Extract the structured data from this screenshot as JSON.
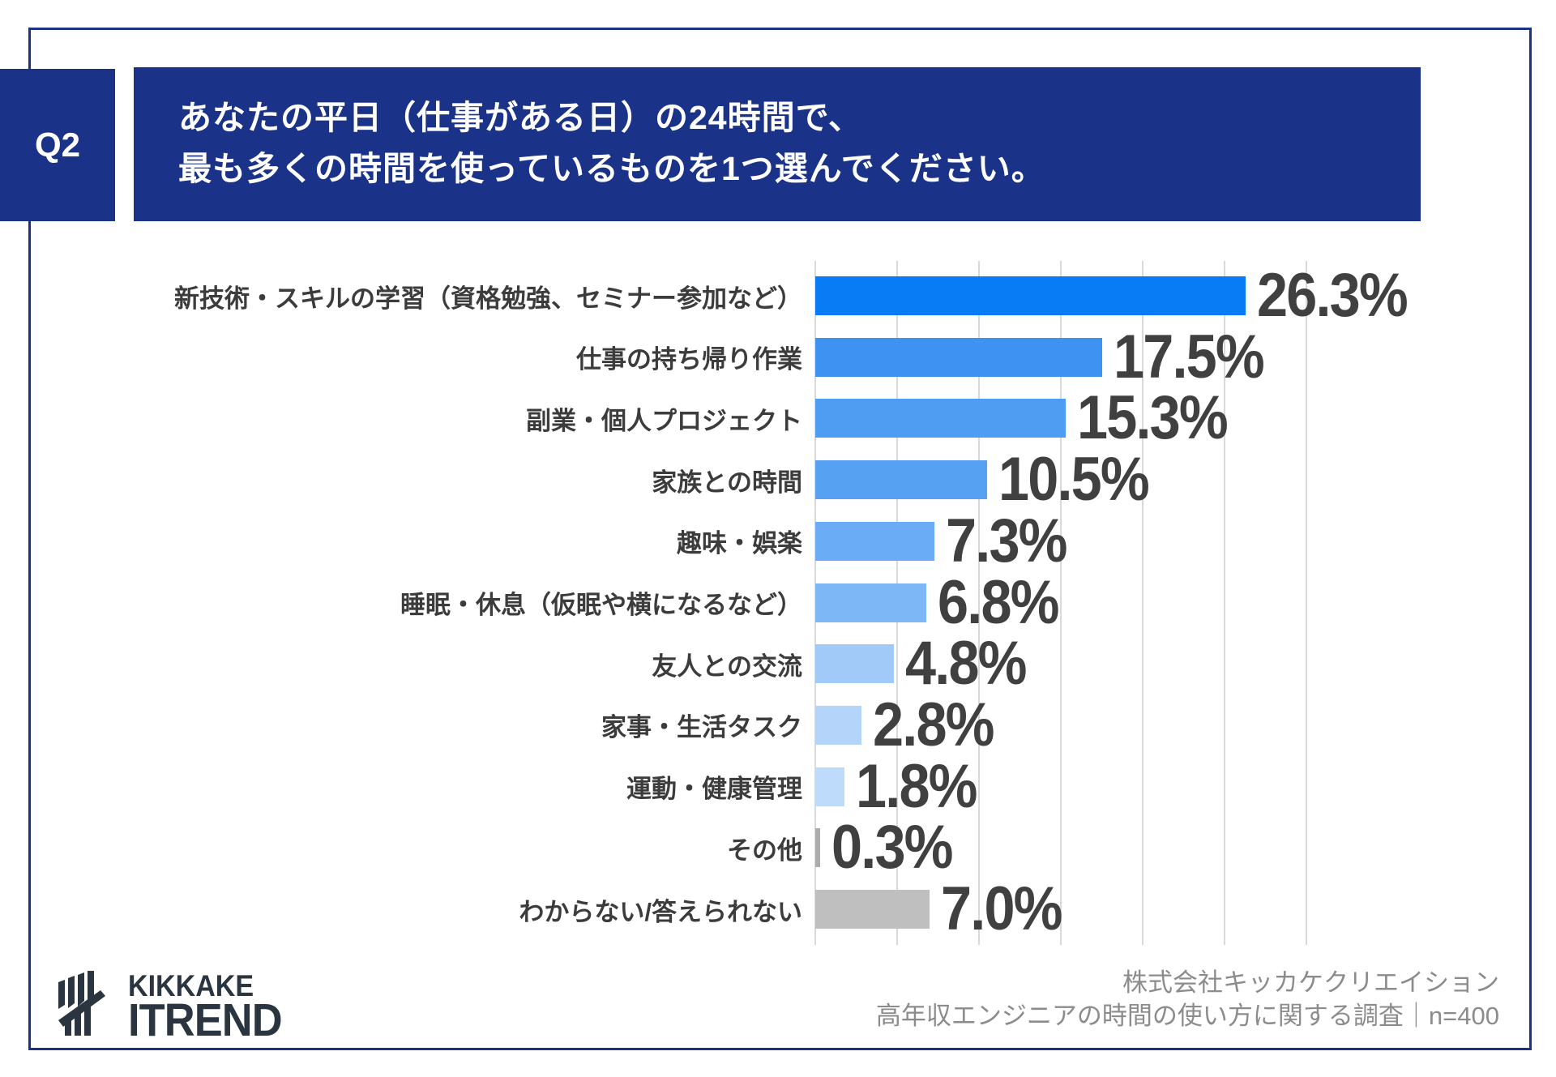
{
  "header": {
    "question_number": "Q2",
    "title_line1": "あなたの平日（仕事がある日）の24時間で、",
    "title_line2": "最も多くの時間を使っているものを1つ選んでください。"
  },
  "chart_data": {
    "type": "bar",
    "orientation": "horizontal",
    "unit": "%",
    "categories": [
      "新技術・スキルの学習（資格勉強、セミナー参加など）",
      "仕事の持ち帰り作業",
      "副業・個人プロジェクト",
      "家族との時間",
      "趣味・娯楽",
      "睡眠・休息（仮眠や横になるなど）",
      "友人との交流",
      "家事・生活タスク",
      "運動・健康管理",
      "その他",
      "わからない/答えられない"
    ],
    "values": [
      26.3,
      17.5,
      15.3,
      10.5,
      7.3,
      6.8,
      4.8,
      2.8,
      1.8,
      0.3,
      7.0
    ],
    "value_labels": [
      "26.3%",
      "17.5%",
      "15.3%",
      "10.5%",
      "7.3%",
      "6.8%",
      "4.8%",
      "2.8%",
      "1.8%",
      "0.3%",
      "7.0%"
    ],
    "bar_colors": [
      "#077CF4",
      "#3E92F2",
      "#4F9CF3",
      "#57A1F3",
      "#6AACF5",
      "#7EB7F6",
      "#A1CAF9",
      "#B4D4FA",
      "#BFDBFB",
      "#ACACAC",
      "#BFBFBF"
    ],
    "xlim": [
      0,
      30
    ],
    "gridline_interval": 5,
    "grid": true,
    "legend": false,
    "title": "",
    "xlabel": "",
    "ylabel": ""
  },
  "footer": {
    "logo_line1": "KIKKAKE",
    "logo_line2": "ITREND",
    "credit_line1": "株式会社キッカケクリエイション",
    "credit_line2": "高年収エンジニアの時間の使い方に関する調査｜n=400"
  },
  "colors": {
    "navy": "#1A3389",
    "grid": "#D9D9D9",
    "category_text": "#3C3C3C",
    "value_text": "#404040",
    "credit_text": "#8C8C8C",
    "logo": "#2A3540"
  }
}
